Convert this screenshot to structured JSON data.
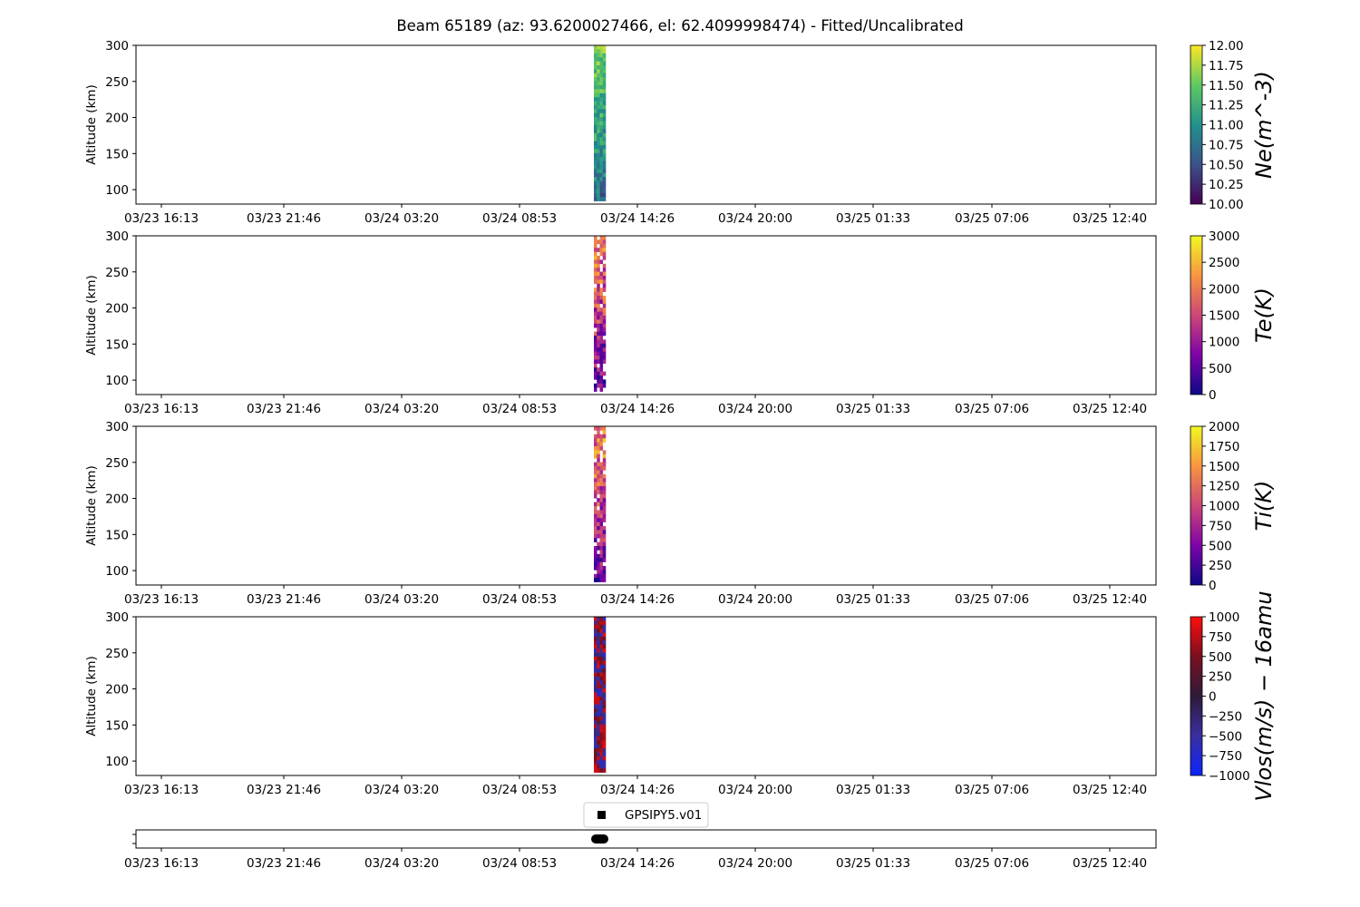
{
  "chart_data": {
    "type": "heatmap",
    "title": "Beam 65189 (az: 93.6200027466, el: 62.4099998474) - Fitted/Uncalibrated",
    "x_tick_labels": [
      "03/23 16:13",
      "03/23 21:46",
      "03/24 03:20",
      "03/24 08:53",
      "03/24 14:26",
      "03/24 20:00",
      "03/25 01:33",
      "03/25 07:06",
      "03/25 12:40"
    ],
    "panels": [
      {
        "parameter": "Ne",
        "ylabel": "Altitude (km)",
        "ylim": [
          80,
          300
        ],
        "y_ticks": [
          100,
          150,
          200,
          250,
          300
        ],
        "colorbar_label": "Ne(m^-3)",
        "colorbar_ticks": [
          "10.00",
          "10.25",
          "10.50",
          "10.75",
          "11.00",
          "11.25",
          "11.50",
          "11.75",
          "12.00"
        ],
        "clim": [
          10,
          12
        ],
        "colormap": "viridis",
        "data_note": "data present only in a narrow time window near 03/24 12:00"
      },
      {
        "parameter": "Te",
        "ylabel": "Altitude (km)",
        "ylim": [
          80,
          300
        ],
        "y_ticks": [
          100,
          150,
          200,
          250,
          300
        ],
        "colorbar_label": "Te(K)",
        "colorbar_ticks": [
          "0",
          "500",
          "1000",
          "1500",
          "2000",
          "2500",
          "3000"
        ],
        "clim": [
          0,
          3000
        ],
        "colormap": "plasma"
      },
      {
        "parameter": "Ti",
        "ylabel": "Altitude (km)",
        "ylim": [
          80,
          300
        ],
        "y_ticks": [
          100,
          150,
          200,
          250,
          300
        ],
        "colorbar_label": "Ti(K)",
        "colorbar_ticks": [
          "0",
          "250",
          "500",
          "750",
          "1000",
          "1250",
          "1500",
          "1750",
          "2000"
        ],
        "clim": [
          0,
          2000
        ],
        "colormap": "plasma"
      },
      {
        "parameter": "Vlos",
        "ylabel": "Altitude (km)",
        "ylim": [
          80,
          300
        ],
        "y_ticks": [
          100,
          150,
          200,
          250,
          300
        ],
        "colorbar_label": "Vlos(m/s) − 16amu",
        "colorbar_ticks": [
          "−1000",
          "−750",
          "−500",
          "−250",
          "0",
          "250",
          "500",
          "750",
          "1000"
        ],
        "clim": [
          -1000,
          1000
        ],
        "colormap": "bwr-dark"
      }
    ],
    "legend": {
      "entries": [
        "GPSIPY5.v01"
      ],
      "placement": "top-center"
    },
    "colors": {
      "viridis": [
        "#440154",
        "#3b528b",
        "#21918c",
        "#5ec962",
        "#fde725"
      ],
      "plasma": [
        "#0d0887",
        "#7e03a8",
        "#cc4778",
        "#f89540",
        "#f0f921"
      ],
      "bwr-dark": [
        "#0b24ff",
        "#3a2fa0",
        "#2e1a3a",
        "#7a1020",
        "#ff0d0d"
      ]
    }
  }
}
